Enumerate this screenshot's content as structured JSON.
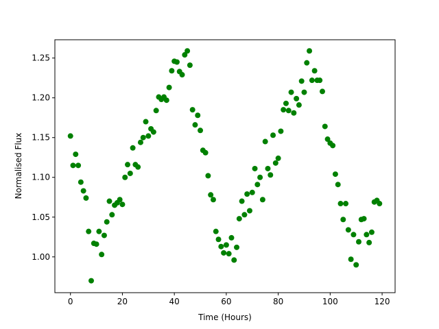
{
  "chart_data": {
    "type": "scatter",
    "x_label": "Time (Hours)",
    "y_label": "Normalised Flux",
    "color": "green",
    "x": [
      0,
      1,
      2,
      3,
      4,
      5,
      6,
      7,
      8,
      9,
      10,
      11,
      12,
      13,
      14,
      15,
      16,
      17,
      18,
      19,
      20,
      21,
      22,
      23,
      24,
      25,
      26,
      27,
      28,
      29,
      30,
      31,
      32,
      33,
      34,
      35,
      36,
      37,
      38,
      39,
      40,
      41,
      42,
      43,
      44,
      45,
      46,
      47,
      48,
      49,
      50,
      51,
      52,
      53,
      54,
      55,
      56,
      57,
      58,
      59,
      60,
      61,
      62,
      63,
      64,
      65,
      66,
      67,
      68,
      69,
      70,
      71,
      72,
      73,
      74,
      75,
      76,
      77,
      78,
      79,
      80,
      81,
      82,
      83,
      84,
      85,
      86,
      87,
      88,
      89,
      90,
      91,
      92,
      93,
      94,
      95,
      96,
      97,
      98,
      99,
      100,
      101,
      102,
      103,
      104,
      105,
      106,
      107,
      108,
      109,
      110,
      111,
      112,
      113,
      114,
      115,
      116,
      117,
      118,
      119
    ],
    "values": [
      1.152,
      1.115,
      1.129,
      1.115,
      1.094,
      1.083,
      1.074,
      1.032,
      0.97,
      1.017,
      1.016,
      1.032,
      1.003,
      1.027,
      1.044,
      1.07,
      1.053,
      1.065,
      1.068,
      1.072,
      1.066,
      1.1,
      1.116,
      1.105,
      1.137,
      1.116,
      1.113,
      1.144,
      1.15,
      1.17,
      1.152,
      1.161,
      1.157,
      1.184,
      1.201,
      1.198,
      1.201,
      1.197,
      1.213,
      1.234,
      1.246,
      1.245,
      1.233,
      1.229,
      1.254,
      1.259,
      1.241,
      1.185,
      1.166,
      1.178,
      1.159,
      1.134,
      1.131,
      1.102,
      1.078,
      1.072,
      1.032,
      1.022,
      1.013,
      1.005,
      1.015,
      1.004,
      1.024,
      0.996,
      1.012,
      1.048,
      1.07,
      1.053,
      1.079,
      1.058,
      1.081,
      1.111,
      1.091,
      1.1,
      1.072,
      1.145,
      1.111,
      1.103,
      1.153,
      1.118,
      1.124,
      1.158,
      1.185,
      1.193,
      1.184,
      1.207,
      1.181,
      1.199,
      1.191,
      1.221,
      1.207,
      1.244,
      1.259,
      1.222,
      1.234,
      1.222,
      1.222,
      1.208,
      1.164,
      1.148,
      1.143,
      1.14,
      1.104,
      1.091,
      1.067,
      1.047,
      1.067,
      1.034,
      0.997,
      1.028,
      0.99,
      1.019,
      1.047,
      1.048,
      1.028,
      1.018,
      1.031,
      1.069,
      1.071,
      1.067
    ],
    "xlim": [
      -6,
      125
    ],
    "xticks": [
      0,
      20,
      40,
      60,
      80,
      100,
      120
    ],
    "ylim": [
      0.955,
      1.273
    ],
    "yticks": [
      {
        "value": 1.0,
        "label": "1.00"
      },
      {
        "value": 1.05,
        "label": "1.05"
      },
      {
        "value": 1.1,
        "label": "1.10"
      },
      {
        "value": 1.15,
        "label": "1.15"
      },
      {
        "value": 1.2,
        "label": "1.20"
      },
      {
        "value": 1.25,
        "label": "1.25"
      }
    ]
  }
}
